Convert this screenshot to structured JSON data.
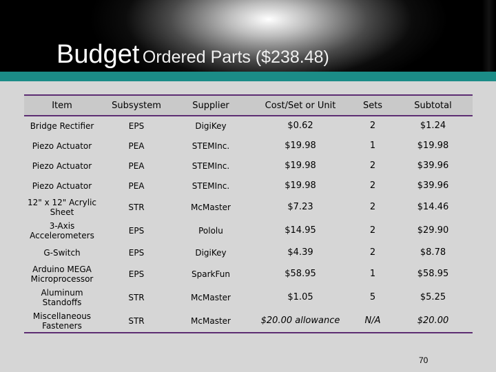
{
  "slide": {
    "title_main": "Budget",
    "title_sub": "Ordered Parts ($238.48)",
    "page_number": "70"
  },
  "table": {
    "headers": [
      "Item",
      "Subsystem",
      "Supplier",
      "Cost/Set or Unit",
      "Sets",
      "Subtotal"
    ],
    "rows": [
      [
        "Bridge Rectifier",
        "EPS",
        "DigiKey",
        "$0.62",
        "2",
        "$1.24"
      ],
      [
        "Piezo Actuator",
        "PEA",
        "STEMInc.",
        "$19.98",
        "1",
        "$19.98"
      ],
      [
        "Piezo Actuator",
        "PEA",
        "STEMInc.",
        "$19.98",
        "2",
        "$39.96"
      ],
      [
        "Piezo Actuator",
        "PEA",
        "STEMInc.",
        "$19.98",
        "2",
        "$39.96"
      ],
      [
        "12\" x 12\" Acrylic Sheet",
        "STR",
        "McMaster",
        "$7.23",
        "2",
        "$14.46"
      ],
      [
        "3-Axis Accelerometers",
        "EPS",
        "Pololu",
        "$14.95",
        "2",
        "$29.90"
      ],
      [
        "G-Switch",
        "EPS",
        "DigiKey",
        "$4.39",
        "2",
        "$8.78"
      ],
      [
        "Arduino MEGA Microprocessor",
        "EPS",
        "SparkFun",
        "$58.95",
        "1",
        "$58.95"
      ],
      [
        "Aluminum Standoffs",
        "STR",
        "McMaster",
        "$1.05",
        "5",
        "$5.25"
      ],
      [
        "Miscellaneous Fasteners",
        "STR",
        "McMaster",
        "$20.00 allowance",
        "N/A",
        "$20.00"
      ]
    ]
  },
  "colors": {
    "accent_teal": "#1b8c87",
    "rule_purple": "#5c2c72",
    "content_gray": "#d6d6d6"
  }
}
